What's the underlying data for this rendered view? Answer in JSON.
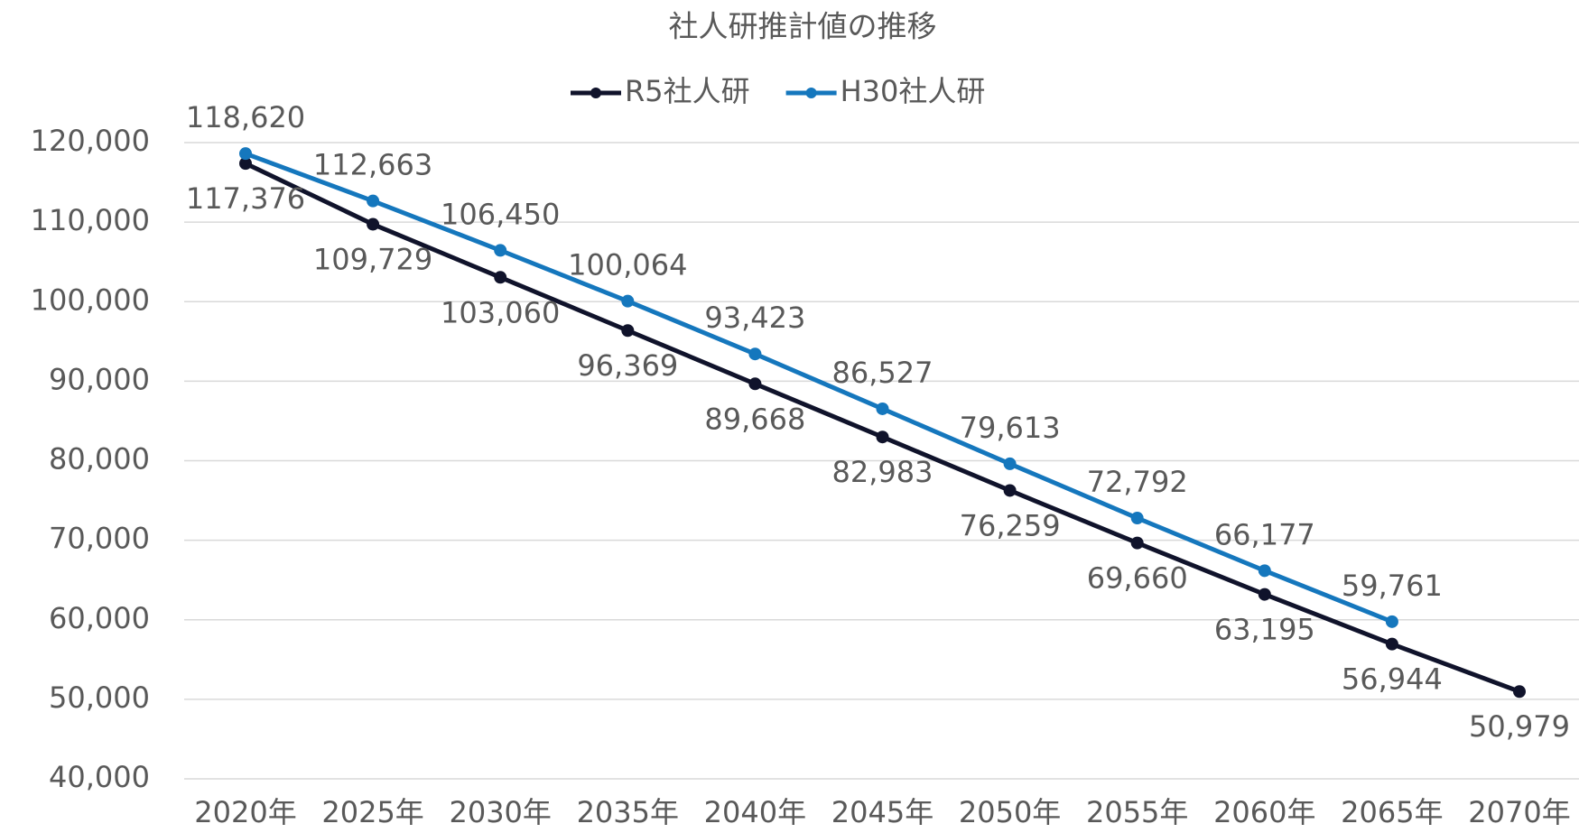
{
  "chart_data": {
    "type": "line",
    "title": "社人研推計値の推移",
    "categories": [
      "2020年",
      "2025年",
      "2030年",
      "2035年",
      "2040年",
      "2045年",
      "2050年",
      "2055年",
      "2060年",
      "2065年",
      "2070年"
    ],
    "series": [
      {
        "name": "R5社人研",
        "color": "#10132b",
        "values": [
          117376,
          109729,
          103060,
          96369,
          89668,
          82983,
          76259,
          69660,
          63195,
          56944,
          50979
        ],
        "value_labels": [
          "117,376",
          "109,729",
          "103,060",
          "96,369",
          "89,668",
          "82,983",
          "76,259",
          "69,660",
          "63,195",
          "56,944",
          "50,979"
        ]
      },
      {
        "name": "H30社人研",
        "color": "#1577bd",
        "values": [
          118620,
          112663,
          106450,
          100064,
          93423,
          86527,
          79613,
          72792,
          66177,
          59761,
          null
        ],
        "value_labels": [
          "118,620",
          "112,663",
          "106,450",
          "100,064",
          "93,423",
          "86,527",
          "79,613",
          "72,792",
          "66,177",
          "59,761",
          null
        ]
      }
    ],
    "ylim": [
      40000,
      120000
    ],
    "yticks": [
      {
        "value": 40000,
        "label": "40,000"
      },
      {
        "value": 50000,
        "label": "50,000"
      },
      {
        "value": 60000,
        "label": "60,000"
      },
      {
        "value": 70000,
        "label": "70,000"
      },
      {
        "value": 80000,
        "label": "80,000"
      },
      {
        "value": 90000,
        "label": "90,000"
      },
      {
        "value": 100000,
        "label": "100,000"
      },
      {
        "value": 110000,
        "label": "110,000"
      },
      {
        "value": 120000,
        "label": "120,000"
      }
    ],
    "grid": true,
    "legend": "top"
  }
}
